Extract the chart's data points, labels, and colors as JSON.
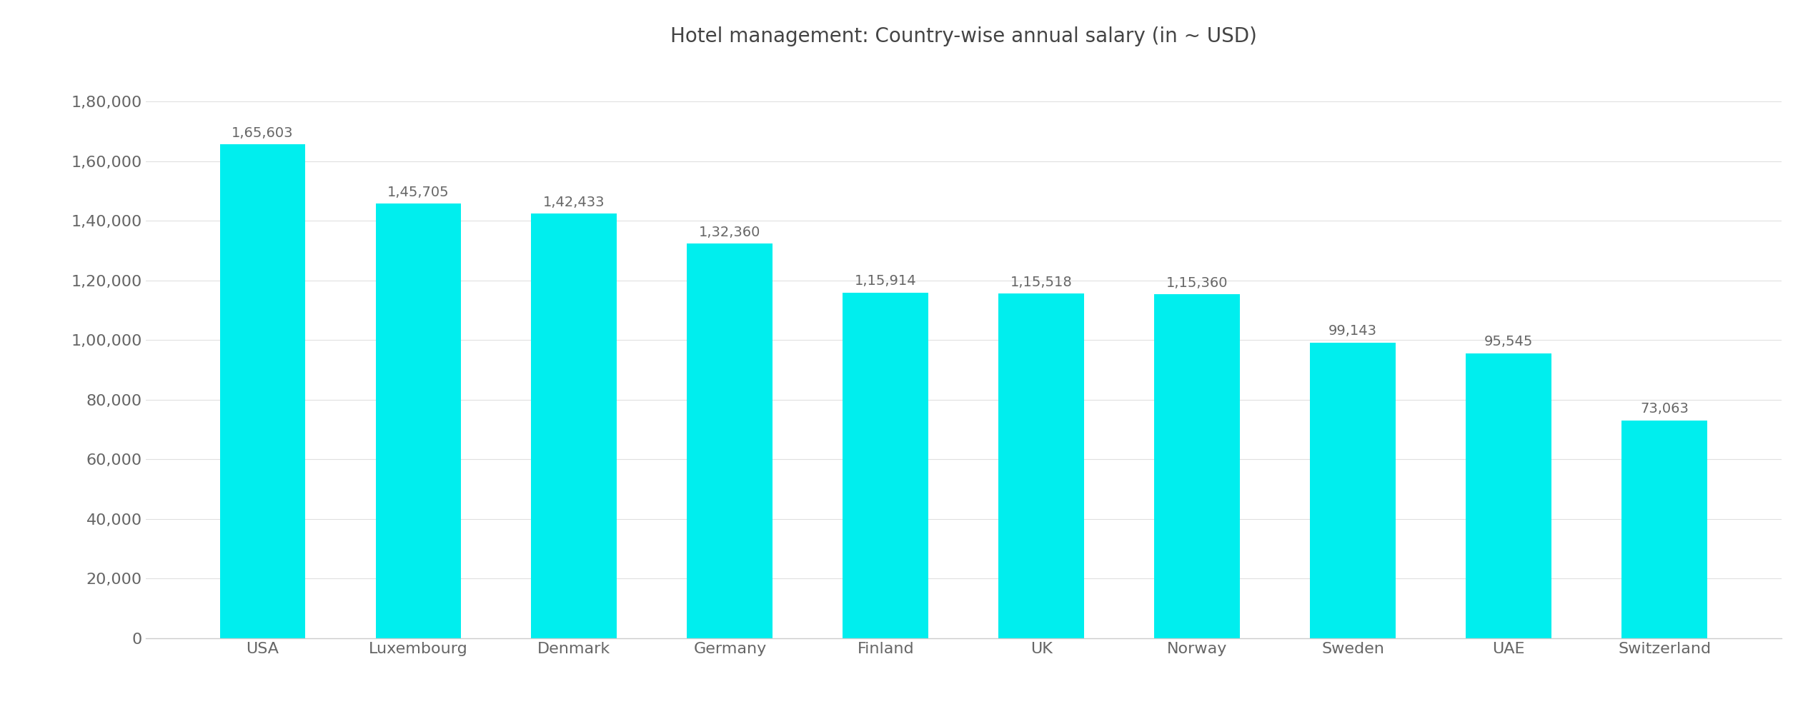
{
  "title": "Hotel management: Country-wise annual salary (in ~ USD)",
  "categories": [
    "USA",
    "Luxembourg",
    "Denmark",
    "Germany",
    "Finland",
    "UK",
    "Norway",
    "Sweden",
    "UAE",
    "Switzerland"
  ],
  "values": [
    165603,
    145705,
    142433,
    132360,
    115914,
    115518,
    115360,
    99143,
    95545,
    73063
  ],
  "bar_color": "#00EEEE",
  "label_color": "#666666",
  "title_color": "#444444",
  "ytick_labels": [
    "0",
    "20,000",
    "40,000",
    "60,000",
    "80,000",
    "1,00,000",
    "1,20,000",
    "1,40,000",
    "1,60,000",
    "1,80,000"
  ],
  "ytick_values": [
    0,
    20000,
    40000,
    60000,
    80000,
    100000,
    120000,
    140000,
    160000,
    180000
  ],
  "ylim": [
    0,
    195000
  ],
  "bar_labels": [
    "1,65,603",
    "1,45,705",
    "1,42,433",
    "1,32,360",
    "1,15,914",
    "1,15,518",
    "1,15,360",
    "99,143",
    "95,545",
    "73,063"
  ],
  "figsize": [
    25.44,
    9.93
  ],
  "dpi": 100,
  "title_fontsize": 20,
  "tick_fontsize": 16,
  "bar_label_fontsize": 14,
  "bar_width": 0.55
}
